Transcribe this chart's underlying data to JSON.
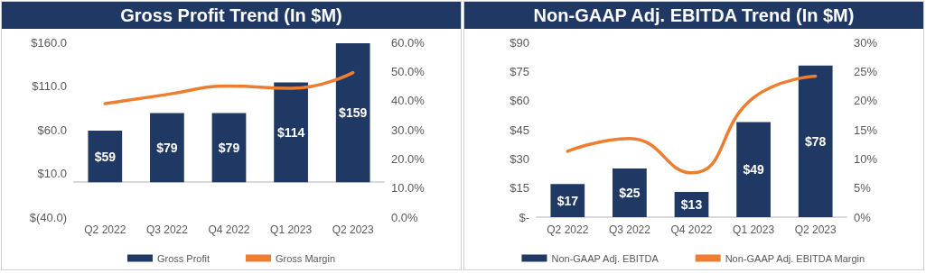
{
  "chart_data": [
    {
      "type": "bar",
      "title": "Gross Profit Trend (In $M)",
      "categories": [
        "Q2 2022",
        "Q3 2022",
        "Q4 2022",
        "Q1 2023",
        "Q2 2023"
      ],
      "series": [
        {
          "name": "Gross Profit",
          "color": "#203864",
          "values": [
            59,
            79,
            79,
            114,
            159
          ],
          "value_labels": [
            "$59",
            "$79",
            "$79",
            "$114",
            "$159"
          ]
        },
        {
          "name": "Gross Margin",
          "type": "line",
          "axis": "y2",
          "color": "#ed7d31",
          "values": [
            39.0,
            42.1,
            45.0,
            44.2,
            49.6
          ]
        }
      ],
      "ylim": [
        -40,
        160
      ],
      "yticks": [
        {
          "value": -40,
          "label": "$(40.0)"
        },
        {
          "value": 10,
          "label": "$10.0"
        },
        {
          "value": 60,
          "label": "$60.0"
        },
        {
          "value": 110,
          "label": "$110.0"
        },
        {
          "value": 160,
          "label": "$160.0"
        }
      ],
      "y2lim": [
        0,
        60
      ],
      "y2ticks": [
        {
          "value": 0,
          "label": "0.0%"
        },
        {
          "value": 10,
          "label": "10.0%"
        },
        {
          "value": 20,
          "label": "20.0%"
        },
        {
          "value": 30,
          "label": "30.0%"
        },
        {
          "value": 40,
          "label": "40.0%"
        },
        {
          "value": 50,
          "label": "50.0%"
        },
        {
          "value": 60,
          "label": "60.0%"
        }
      ],
      "legend": "bottom",
      "marker": "none",
      "line_style": "solid"
    },
    {
      "type": "bar",
      "title": "Non-GAAP Adj. EBITDA Trend (In $M)",
      "categories": [
        "Q2 2022",
        "Q3 2022",
        "Q4 2022",
        "Q1 2023",
        "Q2 2023"
      ],
      "series": [
        {
          "name": "Non-GAAP Adj. EBITDA",
          "color": "#203864",
          "values": [
            17,
            25,
            13,
            49,
            78
          ],
          "value_labels": [
            "$17",
            "$25",
            "$13",
            "$49",
            "$78"
          ]
        },
        {
          "name": "Non-GAAP Adj. EBITDA Margin",
          "type": "line",
          "axis": "y2",
          "color": "#ed7d31",
          "values": [
            11.3,
            13.5,
            7.6,
            20.5,
            24.2
          ]
        }
      ],
      "ylim": [
        0,
        90
      ],
      "yticks": [
        {
          "value": 0,
          "label": "$-"
        },
        {
          "value": 15,
          "label": "$15"
        },
        {
          "value": 30,
          "label": "$30"
        },
        {
          "value": 45,
          "label": "$45"
        },
        {
          "value": 60,
          "label": "$60"
        },
        {
          "value": 75,
          "label": "$75"
        },
        {
          "value": 90,
          "label": "$90"
        }
      ],
      "y2lim": [
        0,
        30
      ],
      "y2ticks": [
        {
          "value": 0,
          "label": "0%"
        },
        {
          "value": 5,
          "label": "5%"
        },
        {
          "value": 10,
          "label": "10%"
        },
        {
          "value": 15,
          "label": "15%"
        },
        {
          "value": 20,
          "label": "20%"
        },
        {
          "value": 25,
          "label": "25%"
        },
        {
          "value": 30,
          "label": "30%"
        }
      ],
      "legend": "bottom",
      "marker": "none",
      "line_style": "solid"
    }
  ]
}
